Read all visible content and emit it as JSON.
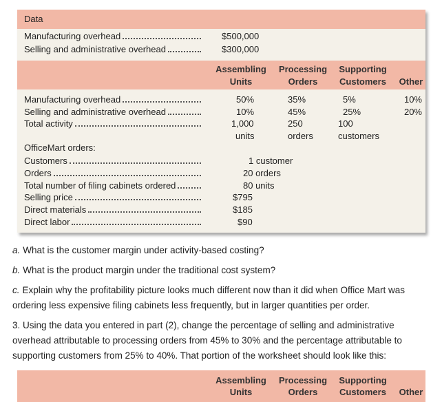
{
  "data_table": {
    "title": "Data",
    "rows": [
      {
        "label": "Manufacturing overhead",
        "value": "$500,000"
      },
      {
        "label": "Selling and administrative overhead",
        "value": "$300,000"
      }
    ]
  },
  "activity_table": {
    "headers": [
      [
        "Assembling",
        "Units"
      ],
      [
        "Processing",
        "Orders"
      ],
      [
        "Supporting",
        "Customers"
      ],
      [
        "Other"
      ]
    ],
    "rows": [
      {
        "label": "Manufacturing overhead",
        "cells": [
          "50%",
          "35%",
          "5%",
          "10%"
        ]
      },
      {
        "label": "Selling and administrative overhead",
        "cells": [
          "10%",
          "45%",
          "25%",
          "20%"
        ]
      },
      {
        "label": "Total activity",
        "cells": [
          "1,000",
          "250",
          "100"
        ],
        "units": [
          "units",
          "orders",
          "customers"
        ]
      }
    ]
  },
  "orders": {
    "title": "OfficeMart orders:",
    "rows": [
      {
        "label": "Customers",
        "value": "1 customer"
      },
      {
        "label": "Orders",
        "value": "20 orders"
      },
      {
        "label": "Total number of filing cabinets ordered",
        "value": "80 units"
      },
      {
        "label": "Selling price",
        "value": "$795"
      },
      {
        "label": "Direct materials",
        "value": "$185"
      },
      {
        "label": "Direct labor",
        "value": "$90"
      }
    ]
  },
  "questions": [
    {
      "label": "a.",
      "text": "What is the customer margin under activity-based costing?"
    },
    {
      "label": "b.",
      "text": "What is the product margin under the traditional cost system?"
    },
    {
      "label": "c.",
      "text": "Explain why the profitability picture looks much different now than it did when Office Mart was ordering less expensive filing cabinets less frequently, but in larger quantities per order."
    }
  ],
  "instruction": "3. Using the data you entered in part (2), change the percentage of selling and administrative overhead attributable to processing orders from 45% to 30% and the percentage attributable to supporting customers from 25% to 40%. That portion of the worksheet should look like this:",
  "bottom_table": {
    "headers": [
      [
        "Assembling",
        "Units"
      ],
      [
        "Processing",
        "Orders"
      ],
      [
        "Supporting",
        "Customers"
      ],
      [
        "Other"
      ]
    ]
  }
}
